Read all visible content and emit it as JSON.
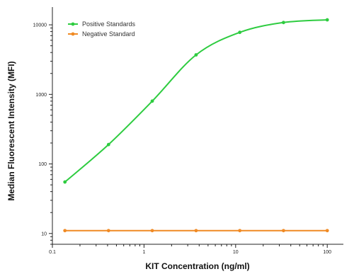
{
  "chart_data": {
    "type": "line",
    "title": "",
    "xlabel": "KIT Concentration (ng/ml)",
    "ylabel": "Median Fluorescent Intensity (MFI)",
    "x_scale": "log",
    "y_scale": "log",
    "xlim": [
      0.1,
      150
    ],
    "ylim": [
      7,
      18000
    ],
    "x_ticks": [
      0.1,
      1,
      10,
      100
    ],
    "x_tick_labels": [
      "0.1",
      "1",
      "10",
      "100"
    ],
    "y_ticks": [
      10,
      100,
      1000,
      10000
    ],
    "y_tick_labels": [
      "10",
      "100",
      "1000",
      "10000"
    ],
    "grid": false,
    "legend_position": "top-left",
    "series": [
      {
        "name": "Positive Standards",
        "color": "#2ecc40",
        "x": [
          0.137,
          0.41,
          1.23,
          3.7,
          11.1,
          33.3,
          100
        ],
        "y": [
          55,
          190,
          800,
          3700,
          7800,
          10800,
          11800
        ]
      },
      {
        "name": "Negative Standard",
        "color": "#f08a24",
        "x": [
          0.137,
          0.41,
          1.23,
          3.7,
          11.1,
          33.3,
          100
        ],
        "y": [
          11,
          11,
          11,
          11,
          11,
          11,
          11
        ]
      }
    ]
  }
}
